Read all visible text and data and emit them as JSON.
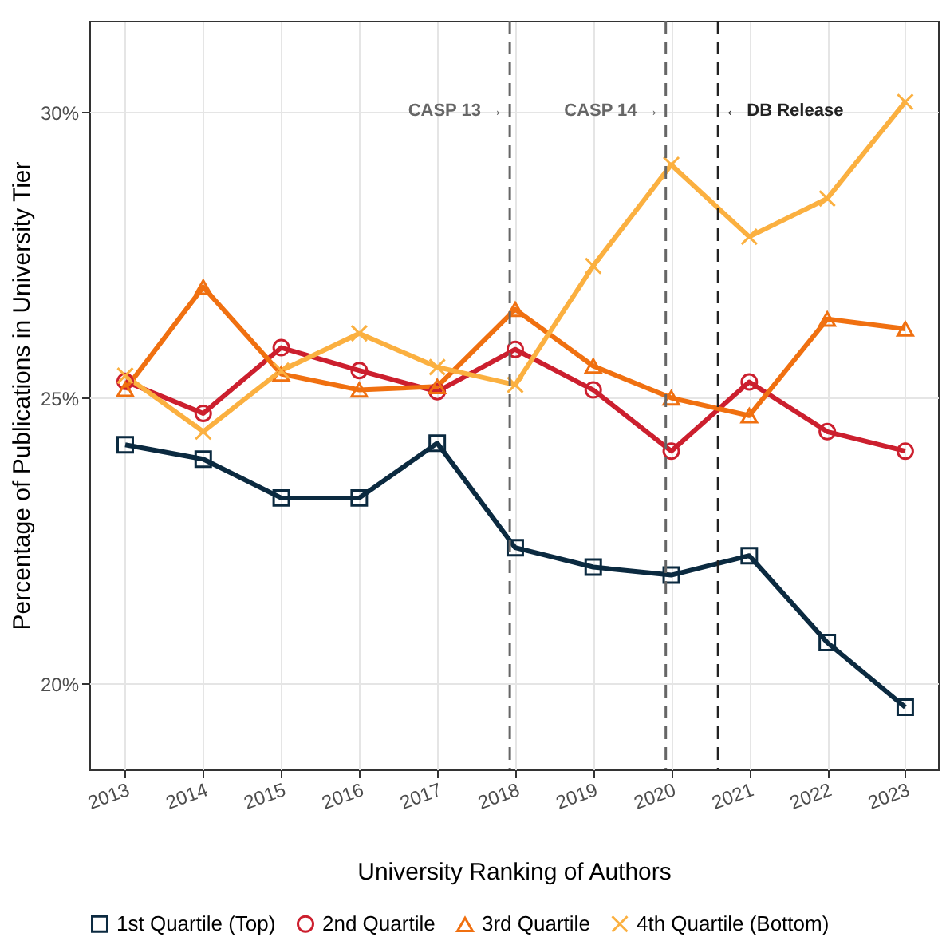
{
  "chart_data": {
    "type": "line",
    "xlabel": "University Ranking of Authors",
    "ylabel": "Percentage of Publications in University Tier",
    "x": [
      2013,
      2014,
      2015,
      2016,
      2017,
      2018,
      2019,
      2020,
      2021,
      2022,
      2023
    ],
    "series": [
      {
        "name": "1st Quartile (Top)",
        "color": "#0b2a40",
        "marker": "square",
        "values": [
          24.18,
          23.93,
          23.25,
          23.25,
          24.21,
          22.38,
          22.04,
          21.9,
          22.24,
          20.72,
          19.59
        ]
      },
      {
        "name": "2nd Quartile",
        "color": "#cc1f2e",
        "marker": "circle",
        "values": [
          25.29,
          24.73,
          25.88,
          25.48,
          25.11,
          25.85,
          25.14,
          24.07,
          25.28,
          24.41,
          24.07
        ]
      },
      {
        "name": "3rd Quartile",
        "color": "#f07010",
        "marker": "triangle",
        "values": [
          25.15,
          26.94,
          25.42,
          25.14,
          25.2,
          26.55,
          25.56,
          25.0,
          24.69,
          26.38,
          26.21
        ]
      },
      {
        "name": "4th Quartile (Bottom)",
        "color": "#fbb040",
        "marker": "cross",
        "values": [
          25.39,
          24.41,
          25.48,
          26.13,
          25.54,
          25.23,
          27.31,
          29.08,
          27.82,
          28.49,
          30.18
        ]
      }
    ],
    "xlim": [
      2012.54,
      2023.42
    ],
    "xticks": [
      2013,
      2014,
      2015,
      2016,
      2017,
      2018,
      2019,
      2020,
      2021,
      2022,
      2023
    ],
    "ylim": [
      18.5,
      31.6
    ],
    "yticks": [
      {
        "value": 20,
        "label": "20%"
      },
      {
        "value": 25,
        "label": "25%"
      },
      {
        "value": 30,
        "label": "30%"
      }
    ],
    "ref_lines": [
      {
        "axis": "x",
        "value": 2017.93,
        "label": "CASP 13 →",
        "color": "#666666",
        "line_style": "dashed"
      },
      {
        "axis": "x",
        "value": 2019.93,
        "label": "CASP 14 →",
        "color": "#666666",
        "line_style": "dashed"
      },
      {
        "axis": "x",
        "value": 2020.6,
        "label": "← DB Release",
        "color": "#222222",
        "line_style": "dashed"
      }
    ],
    "grid": true,
    "legend": "bottom",
    "line_style": "solid"
  }
}
